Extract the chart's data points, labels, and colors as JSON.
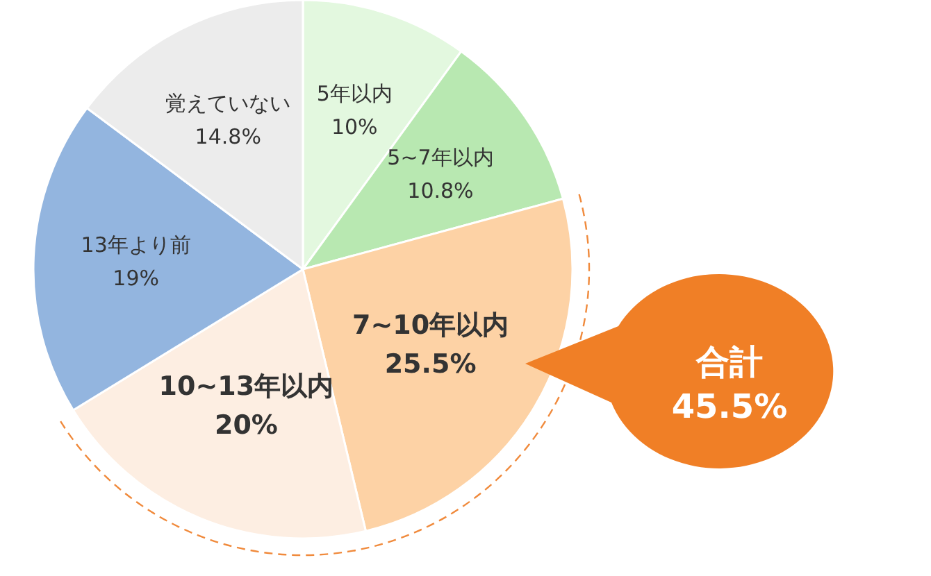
{
  "chart_data": {
    "type": "pie",
    "categories": [
      "5年以内",
      "5~7年以内",
      "7~10年以内",
      "10~13年以内",
      "13年より前",
      "覚えていない"
    ],
    "values": [
      10,
      10.8,
      25.5,
      20,
      19,
      14.8
    ],
    "colors": [
      "#e3f8df",
      "#b8e8b1",
      "#fdd2a5",
      "#fdeee2",
      "#93b5df",
      "#ececec"
    ],
    "value_labels": [
      "10%",
      "10.8%",
      "25.5%",
      "20%",
      "19%",
      "14.8%"
    ],
    "legend": false,
    "annotations": [
      "合計",
      "45.5%"
    ]
  }
}
